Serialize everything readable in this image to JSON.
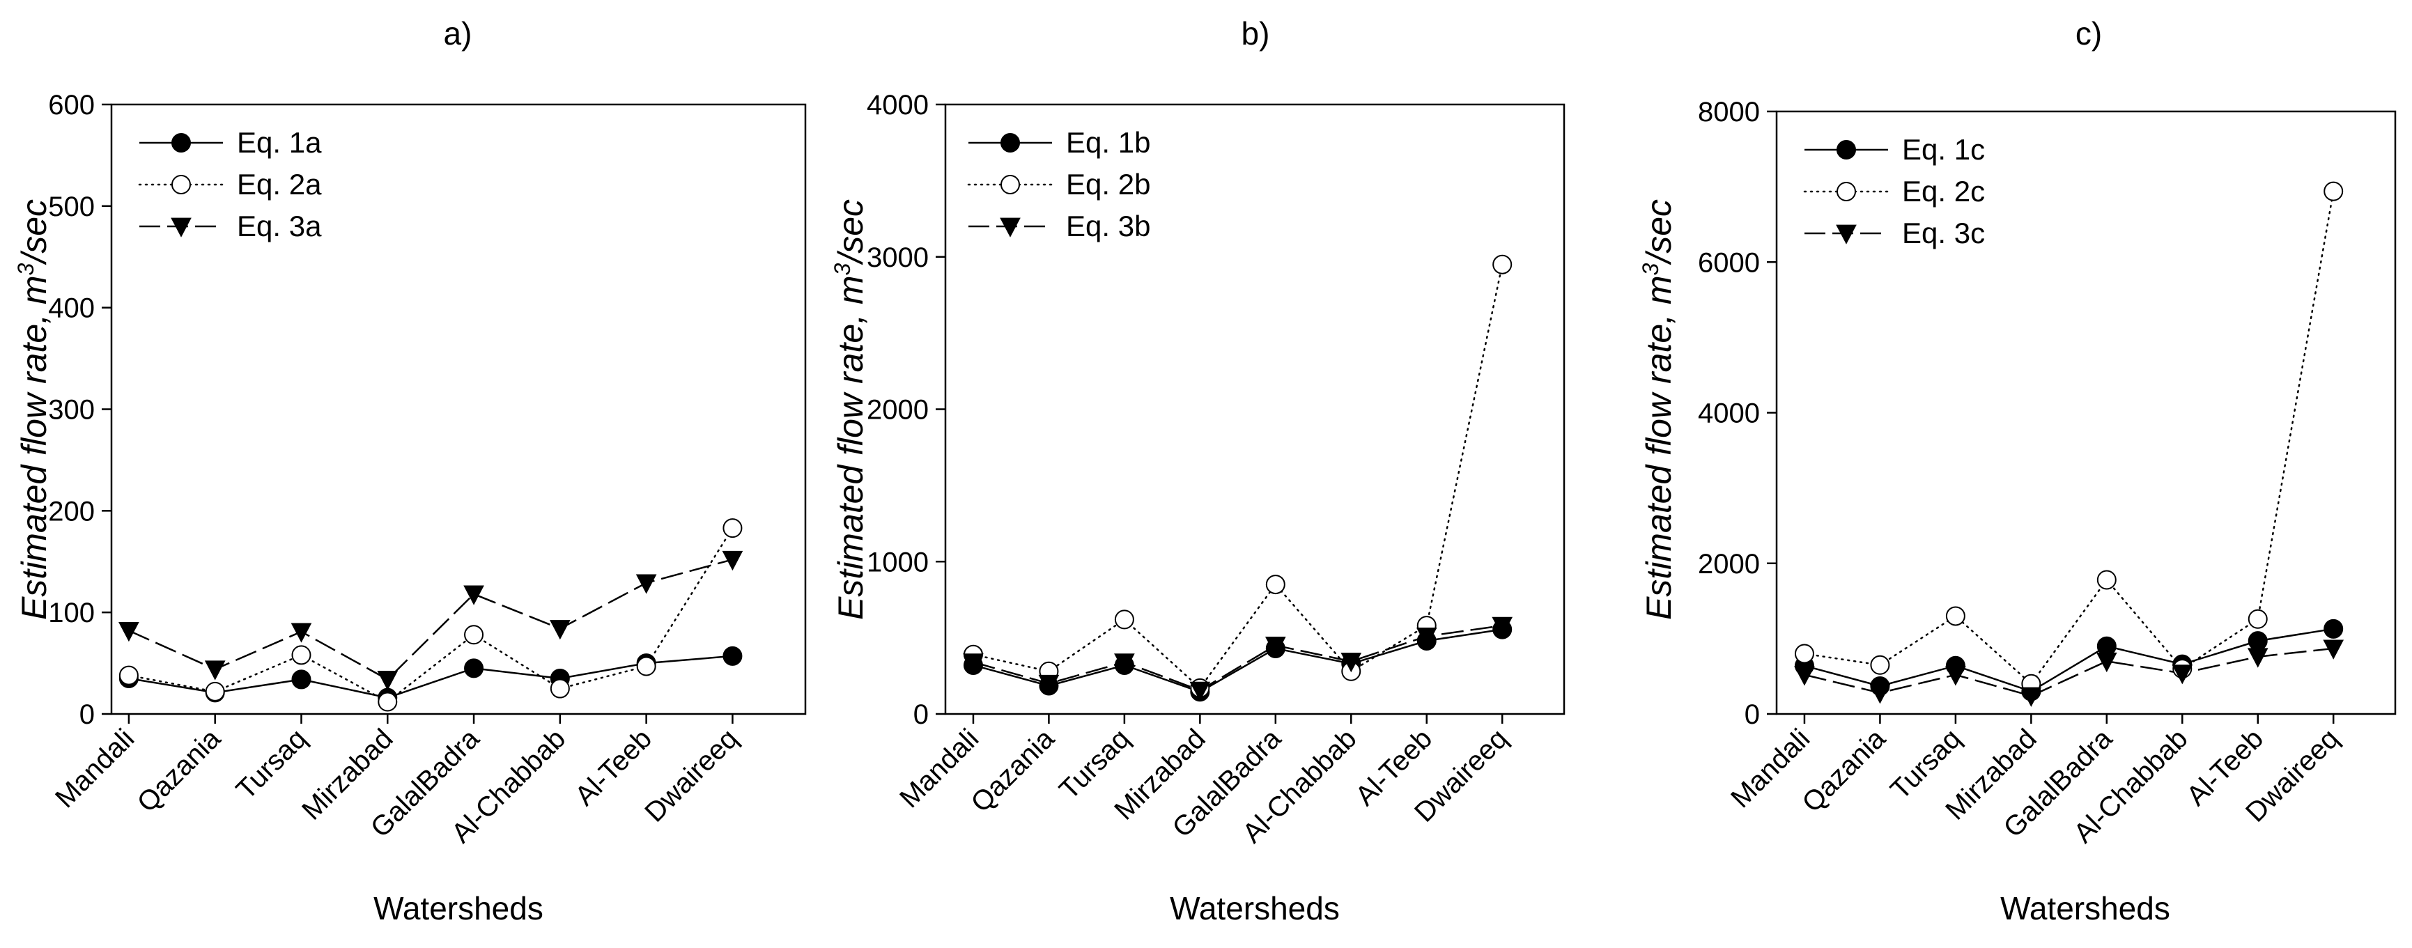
{
  "figure": {
    "panel_titles": [
      "a)",
      "b)",
      "c)"
    ]
  },
  "chart_data": [
    {
      "type": "line",
      "title": "a)",
      "xlabel": "Watersheds",
      "ylabel": "Estimated flow rate, m",
      "ylabel_sup": "3",
      "ylabel_suffix": "/sec",
      "categories": [
        "Mandali",
        "Qazania",
        "Tursaq",
        "Mirzabad",
        "GalalBadra",
        "Al-Chabbab",
        "Al-Teeb",
        "Dwaireeq"
      ],
      "ylim": [
        0,
        600
      ],
      "yticks": [
        0,
        100,
        200,
        300,
        400,
        500,
        600
      ],
      "ytick_labels": [
        "0",
        "100",
        "200",
        "300",
        "400",
        "500",
        "600"
      ],
      "series": [
        {
          "name": "Eq. 1a",
          "style": "solid",
          "marker": "filled-circle",
          "values": [
            35,
            21,
            34,
            16,
            45,
            35,
            50,
            57
          ]
        },
        {
          "name": "Eq. 2a",
          "style": "dotted",
          "marker": "open-circle",
          "values": [
            38,
            22,
            58,
            12,
            78,
            25,
            47,
            183
          ]
        },
        {
          "name": "Eq. 3a",
          "style": "dashed",
          "marker": "filled-triangle-down",
          "values": [
            82,
            44,
            81,
            34,
            118,
            84,
            129,
            152
          ]
        }
      ]
    },
    {
      "type": "line",
      "title": "b)",
      "xlabel": "Watersheds",
      "ylabel": "Estimated flow rate, m",
      "ylabel_sup": "3",
      "ylabel_suffix": "/sec",
      "categories": [
        "Mandali",
        "Qazania",
        "Tursaq",
        "Mirzabad",
        "GalalBadra",
        "Al-Chabbab",
        "Al-Teeb",
        "Dwaireeq"
      ],
      "ylim": [
        0,
        4000
      ],
      "yticks": [
        0,
        1000,
        2000,
        3000,
        4000
      ],
      "ytick_labels": [
        "0",
        "1000",
        "2000",
        "3000",
        "4000"
      ],
      "series": [
        {
          "name": "Eq. 1b",
          "style": "solid",
          "marker": "filled-circle",
          "values": [
            320,
            185,
            320,
            145,
            430,
            330,
            480,
            555
          ]
        },
        {
          "name": "Eq. 2b",
          "style": "dotted",
          "marker": "open-circle",
          "values": [
            390,
            280,
            620,
            170,
            850,
            280,
            580,
            2950
          ]
        },
        {
          "name": "Eq. 3b",
          "style": "dashed",
          "marker": "filled-triangle-down",
          "values": [
            340,
            200,
            340,
            155,
            450,
            345,
            510,
            580
          ]
        }
      ]
    },
    {
      "type": "line",
      "title": "c)",
      "xlabel": "Watersheds",
      "ylabel": "Estimated flow rate, m",
      "ylabel_sup": "3",
      "ylabel_suffix": "/sec",
      "categories": [
        "Mandali",
        "Qazania",
        "Tursaq",
        "Mirzabad",
        "GalalBadra",
        "Al-Chabbab",
        "Al-Teeb",
        "Dwaireeq"
      ],
      "ylim": [
        0,
        8000
      ],
      "yticks": [
        0,
        2000,
        4000,
        6000,
        8000
      ],
      "ytick_labels": [
        "0",
        "2000",
        "4000",
        "6000",
        "8000"
      ],
      "series": [
        {
          "name": "Eq. 1c",
          "style": "solid",
          "marker": "filled-circle",
          "values": [
            640,
            370,
            640,
            300,
            900,
            660,
            970,
            1130
          ]
        },
        {
          "name": "Eq. 2c",
          "style": "dotted",
          "marker": "open-circle",
          "values": [
            800,
            650,
            1300,
            400,
            1780,
            600,
            1260,
            6940
          ]
        },
        {
          "name": "Eq. 3c",
          "style": "dashed",
          "marker": "filled-triangle-down",
          "values": [
            520,
            280,
            520,
            240,
            700,
            540,
            760,
            870
          ]
        }
      ]
    }
  ]
}
